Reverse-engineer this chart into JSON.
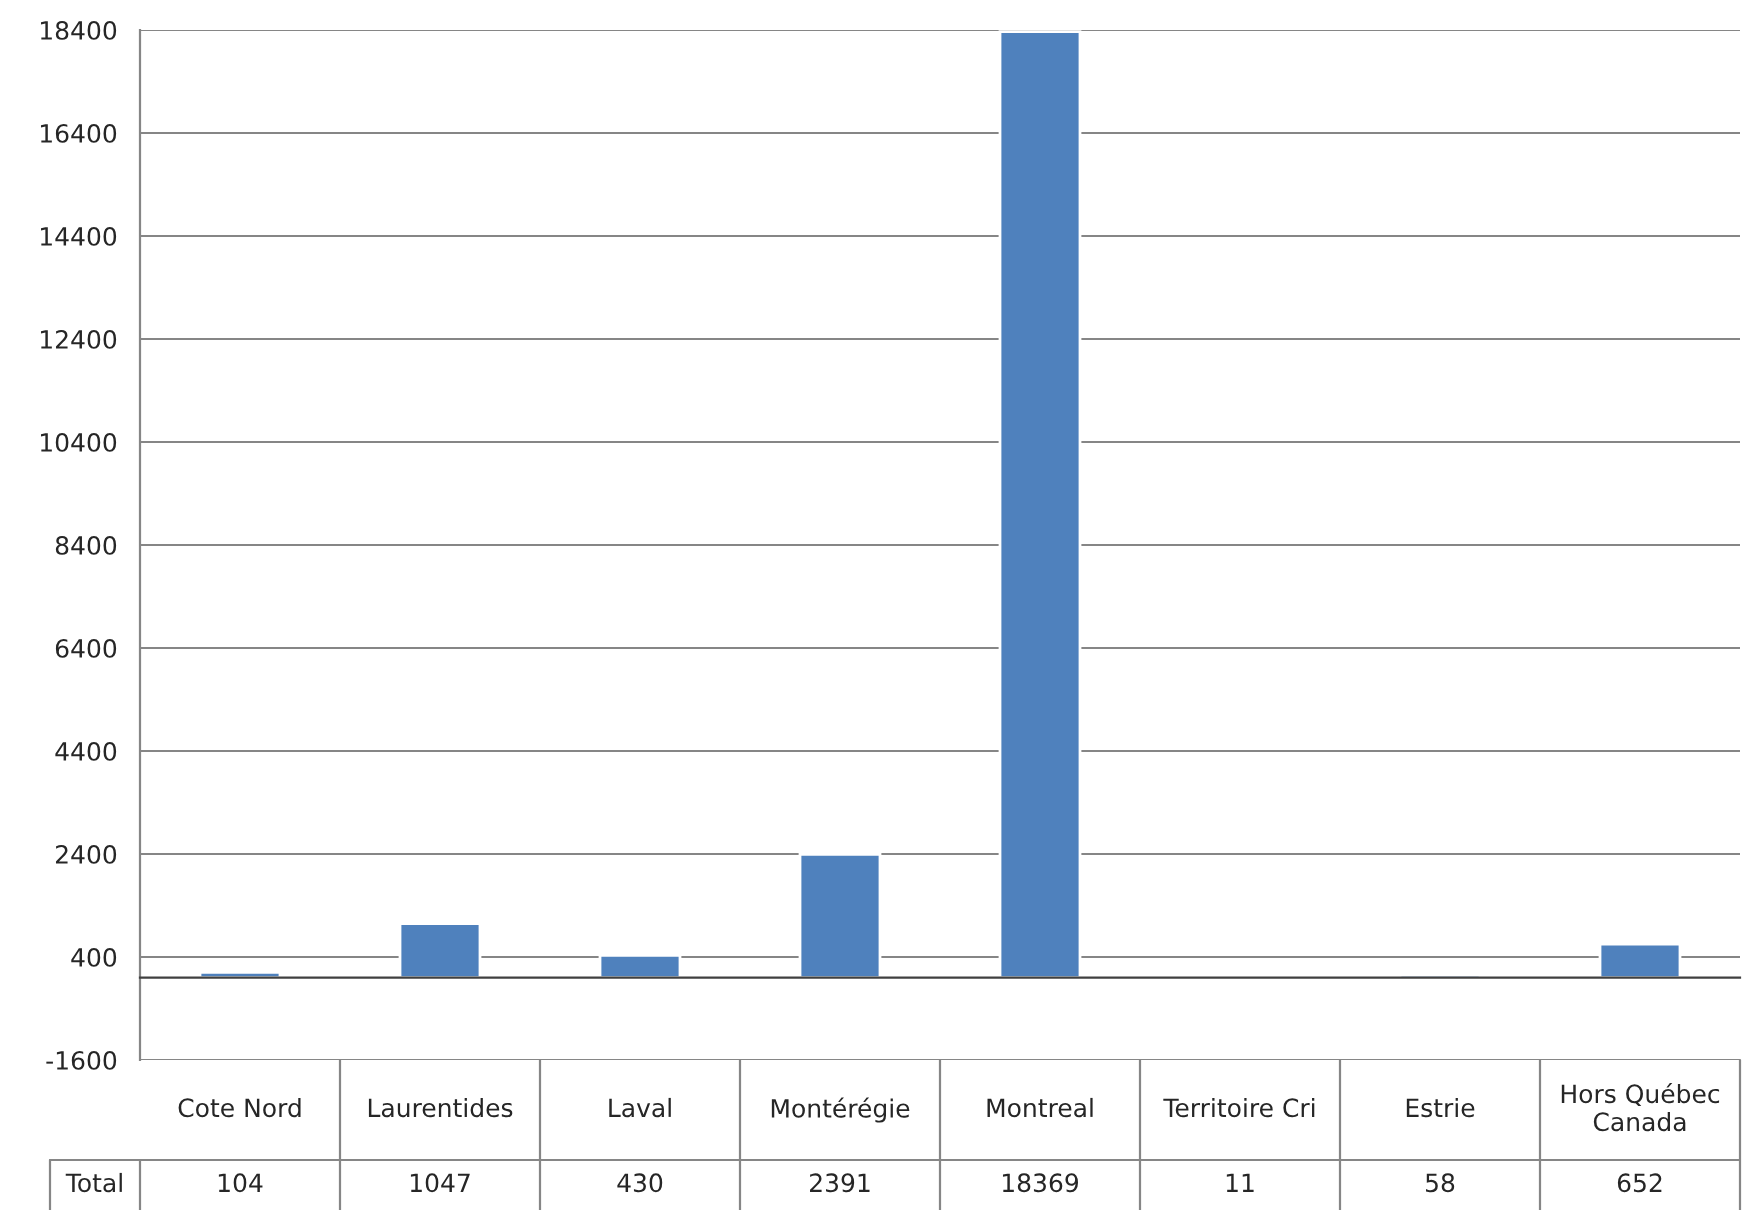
{
  "chart_data": {
    "type": "bar",
    "categories": [
      "Cote Nord",
      "Laurentides",
      "Laval",
      "Montérégie",
      "Montreal",
      "Territoire Cri",
      "Estrie",
      "Hors Québec Canada"
    ],
    "series": [
      {
        "name": "Total",
        "color": "#4f81bd",
        "values": [
          104,
          1047,
          430,
          2391,
          18369,
          11,
          58,
          652
        ]
      }
    ],
    "ylim": [
      -1600,
      18400
    ],
    "yticks": [
      -1600,
      400,
      2400,
      4400,
      6400,
      8400,
      10400,
      12400,
      14400,
      16400,
      18400
    ],
    "grid": "y",
    "data_labels": true,
    "legend": false
  }
}
